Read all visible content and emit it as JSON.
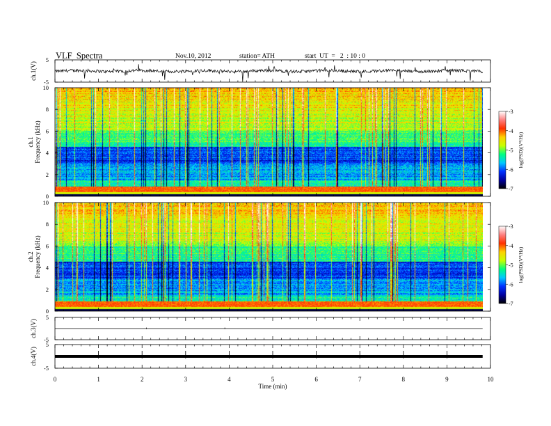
{
  "header": {
    "title": "VLF  Spectra",
    "date": "Nov.10, 2012",
    "station": "station= ATH",
    "start": "start  UT  =   2  : 10 : 0"
  },
  "chart_data": [
    {
      "type": "line",
      "name": "ch1-waveform",
      "ylabel": "ch.1(V)",
      "ylim": [
        -5,
        5
      ],
      "yticks": [
        "5",
        "-5"
      ],
      "baseline": 0,
      "description_values": "noise trace around 0 V with occasional negative spikes"
    },
    {
      "type": "heatmap",
      "name": "ch1-spectrogram",
      "ylabel_lines": [
        "ch.1",
        "Frequency  (kHz)"
      ],
      "ylim": [
        0,
        10
      ],
      "yticks": [
        "0",
        "2",
        "4",
        "6",
        "8",
        "10"
      ],
      "colorbar": {
        "label": "log(PSD)(V²/Hz)",
        "range": [
          -7,
          -3
        ],
        "ticks": [
          "-3",
          "-4",
          "-5",
          "-6",
          "-7"
        ]
      }
    },
    {
      "type": "heatmap",
      "name": "ch2-spectrogram",
      "ylabel_lines": [
        "ch.2",
        "Frequency  (kHz)"
      ],
      "ylim": [
        0,
        10
      ],
      "yticks": [
        "0",
        "2",
        "4",
        "6",
        "8",
        "10"
      ],
      "colorbar": {
        "label": "log(PSD)(V²/Hz)",
        "range": [
          -7,
          -3
        ],
        "ticks": [
          "-3",
          "-4",
          "-5",
          "-6",
          "-7"
        ]
      }
    },
    {
      "type": "line",
      "name": "ch3-waveform",
      "ylabel": "ch.3(V)",
      "ylim": [
        -5,
        5
      ],
      "yticks": [
        "5",
        "-5"
      ],
      "baseline": 0
    },
    {
      "type": "line",
      "name": "ch4-waveform",
      "ylabel": "ch.4(V)",
      "ylim": [
        -5,
        5
      ],
      "yticks": [
        "5",
        "-5"
      ],
      "baseline": 0
    }
  ],
  "xaxis": {
    "label": "Time  (min)",
    "range": [
      0,
      10
    ],
    "data_end": 9.82,
    "ticks": [
      "0",
      "1",
      "2",
      "3",
      "4",
      "5",
      "6",
      "7",
      "8",
      "9",
      "10"
    ]
  },
  "colors": {
    "scale": [
      "#000000",
      "#0000a0",
      "#0030ff",
      "#00c8ff",
      "#00ff80",
      "#c8ff00",
      "#ffd000",
      "#ff3000",
      "#ff8080",
      "#ffffff"
    ]
  }
}
